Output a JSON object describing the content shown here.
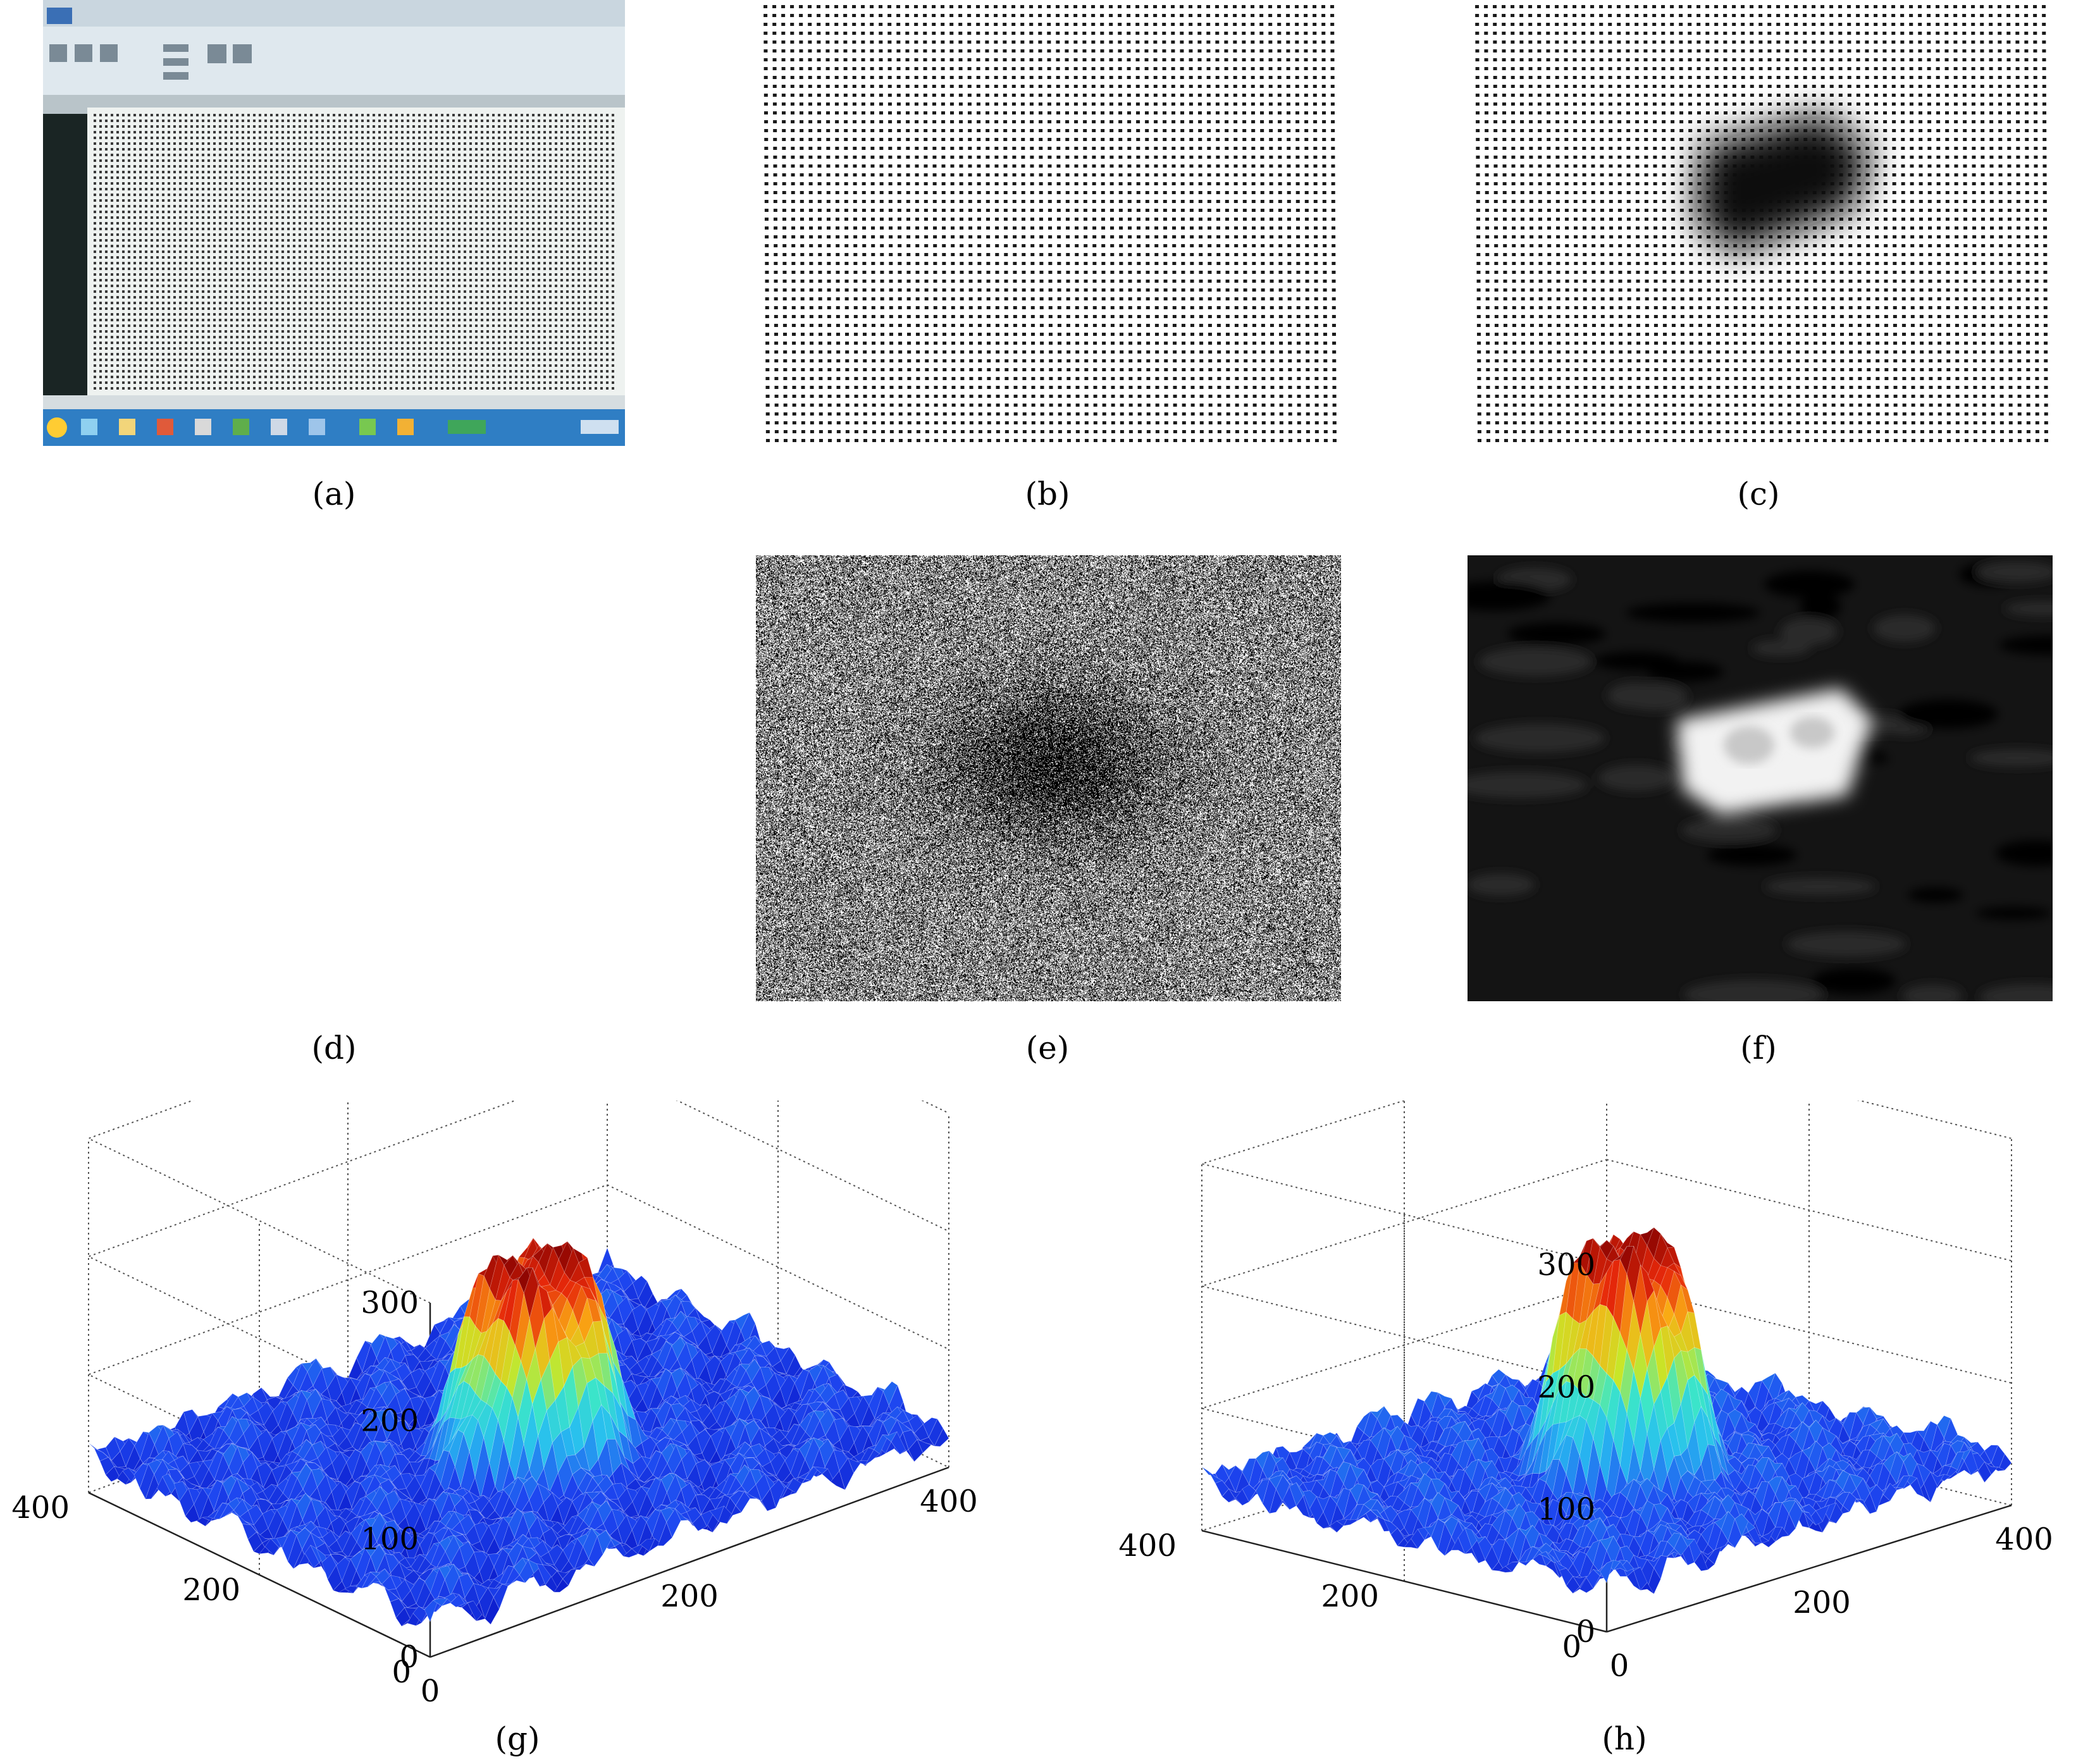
{
  "captions": {
    "a": "(a)",
    "b": "(b)",
    "c": "(c)",
    "d": "(d)",
    "e": "(e)",
    "f": "(f)",
    "g": "(g)",
    "h": "(h)"
  },
  "colors": {
    "screen_frame": "#1f2b2a",
    "ribbon": "#dfe8ee",
    "taskbar": "#2f7ec4",
    "dot": "#1a1a1a",
    "surface_low": "#1f3fe0",
    "surface_mid": "#2fd0e8",
    "surface_high": "#b00000"
  },
  "chart_data": [
    {
      "panel": "g",
      "type": "surface",
      "z_ticks": [
        "0",
        "100",
        "200",
        "300"
      ],
      "y_ticks": [
        "400",
        "200",
        "0"
      ],
      "x_ticks": [
        "0",
        "200",
        "400"
      ],
      "zlim": [
        0,
        300
      ],
      "peak": 200,
      "baseline": 30
    },
    {
      "panel": "h",
      "type": "surface",
      "z_ticks": [
        "0",
        "100",
        "200",
        "300"
      ],
      "y_ticks": [
        "400",
        "200",
        "0"
      ],
      "x_ticks": [
        "0",
        "200",
        "400"
      ],
      "zlim": [
        0,
        300
      ],
      "peak": 235,
      "baseline": 40
    }
  ]
}
